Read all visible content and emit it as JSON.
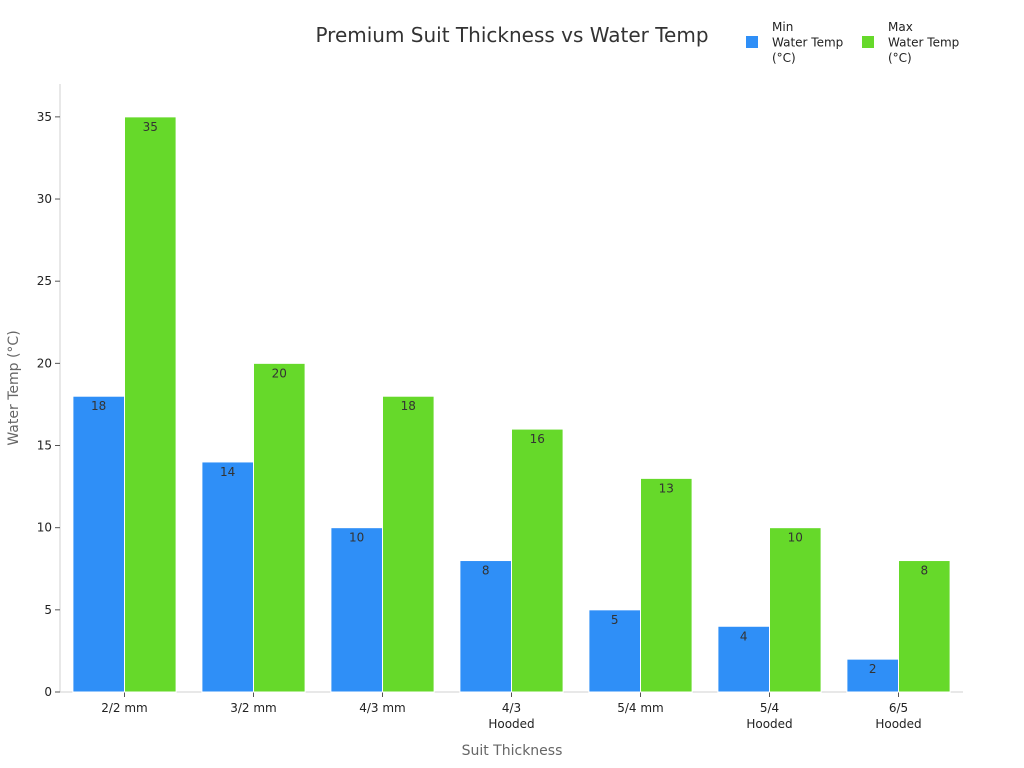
{
  "chart_data": {
    "type": "bar",
    "title": "Premium Suit Thickness vs Water Temp",
    "xlabel": "Suit Thickness",
    "ylabel": "Water Temp (°C)",
    "categories": [
      [
        "2/2 mm"
      ],
      [
        "3/2 mm"
      ],
      [
        "4/3 mm"
      ],
      [
        "4/3",
        "Hooded"
      ],
      [
        "5/4 mm"
      ],
      [
        "5/4",
        "Hooded"
      ],
      [
        "6/5",
        "Hooded"
      ]
    ],
    "series": [
      {
        "name": [
          "Min",
          "Water Temp",
          "(°C)"
        ],
        "color": "#2f8ff7",
        "values": [
          18,
          14,
          10,
          8,
          5,
          4,
          2
        ]
      },
      {
        "name": [
          "Max",
          "Water Temp",
          "(°C)"
        ],
        "color": "#66d92a",
        "values": [
          35,
          20,
          18,
          16,
          13,
          10,
          8
        ]
      }
    ],
    "ylim": [
      0,
      37
    ],
    "yticks": [
      0,
      5,
      10,
      15,
      20,
      25,
      30,
      35
    ],
    "grid": false,
    "legend": "top-right"
  }
}
